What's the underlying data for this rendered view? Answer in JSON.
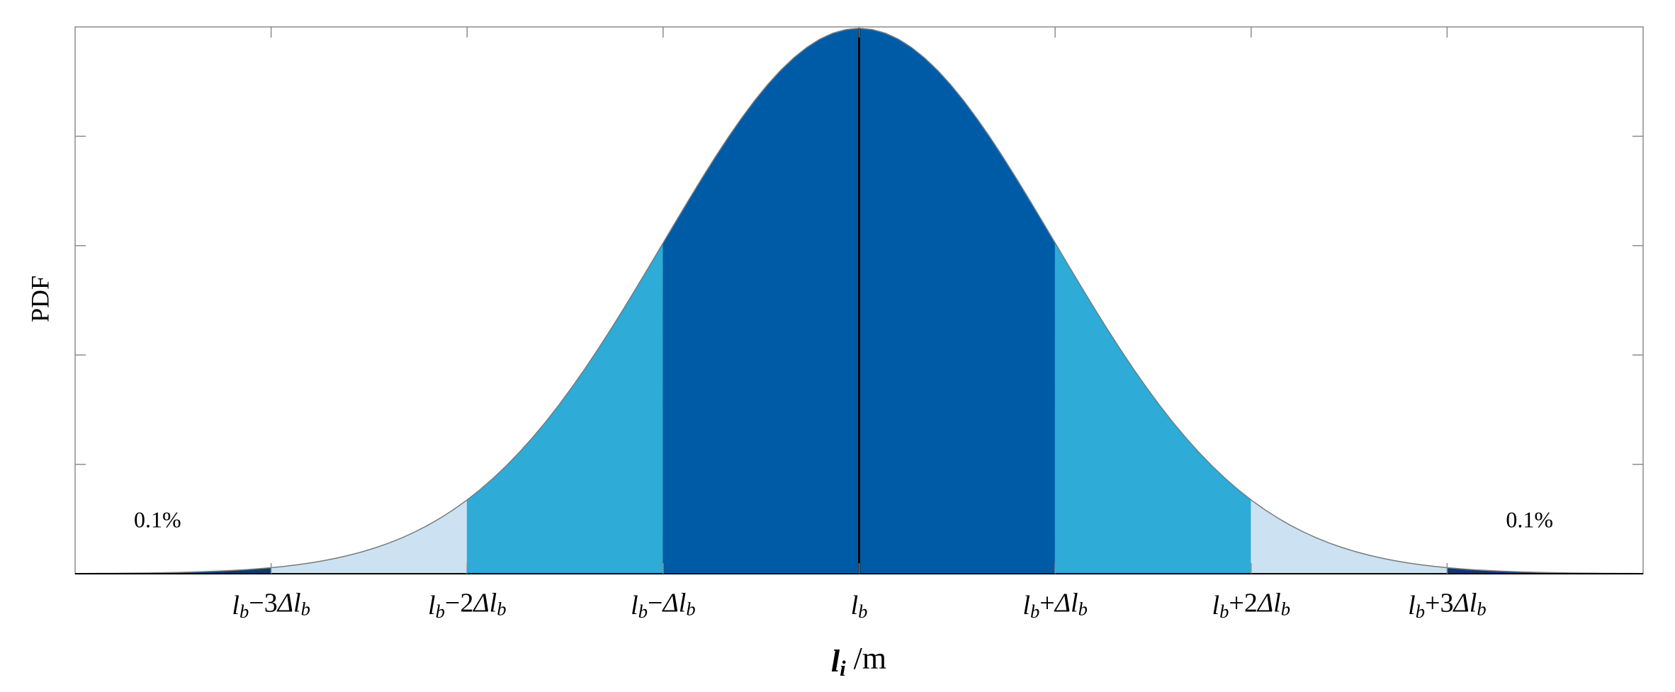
{
  "chart_data": {
    "type": "normal-pdf",
    "mean": 0,
    "sd": 1,
    "xlabel": "li /m",
    "ylabel": "PDF",
    "xlim": [
      -4,
      4
    ],
    "ylim": [
      0,
      0.4
    ],
    "xticks": [
      {
        "value": -3,
        "label": "lb−3Δlb"
      },
      {
        "value": -2,
        "label": "lb−2Δlb"
      },
      {
        "value": -1,
        "label": "lb−Δlb"
      },
      {
        "value": 0,
        "label": "lb"
      },
      {
        "value": 1,
        "label": "lb+Δlb"
      },
      {
        "value": 2,
        "label": "lb+2Δlb"
      },
      {
        "value": 3,
        "label": "lb+3Δlb"
      }
    ],
    "yticks": [
      0.08,
      0.16,
      0.24,
      0.32
    ],
    "regions": [
      {
        "from": -4,
        "to": -3,
        "color": "#0f3a70"
      },
      {
        "from": -3,
        "to": -2,
        "color": "#cce2f2"
      },
      {
        "from": -2,
        "to": -1,
        "color": "#2eabd6"
      },
      {
        "from": -1,
        "to": 1,
        "color": "#005ba6"
      },
      {
        "from": 1,
        "to": 2,
        "color": "#2eabd6"
      },
      {
        "from": 2,
        "to": 3,
        "color": "#cce2f2"
      },
      {
        "from": 3,
        "to": 4,
        "color": "#0f3a70"
      }
    ],
    "annotations": [
      {
        "text": "0.1%",
        "x": -3.7
      },
      {
        "text": "0.1%",
        "x": 3.3
      }
    ]
  }
}
